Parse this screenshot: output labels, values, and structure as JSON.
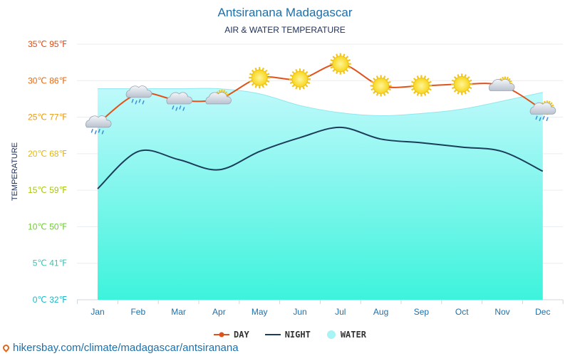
{
  "title": "Antsiranana Madagascar",
  "subtitle": "AIR & WATER TEMPERATURE",
  "footer": "hikersbay.com/climate/madagascar/antsiranana",
  "colors": {
    "day": "#e0521a",
    "night": "#1c3d5a",
    "water_top": "#bff9fb",
    "water_bottom": "#3df3dc",
    "water_line": "#8ee8ee"
  },
  "legend": {
    "day": "DAY",
    "night": "NIGHT",
    "water": "WATER"
  },
  "chart_data": {
    "type": "line",
    "title": "Antsiranana Madagascar",
    "subtitle": "AIR & WATER TEMPERATURE",
    "ylabel": "TEMPERATURE",
    "ylim": [
      0,
      35
    ],
    "grid": true,
    "legend_position": "bottom",
    "categories": [
      "Jan",
      "Feb",
      "Mar",
      "Apr",
      "May",
      "Jun",
      "Jul",
      "Aug",
      "Sep",
      "Oct",
      "Nov",
      "Dec"
    ],
    "y_ticks": [
      {
        "value": 0,
        "label": "0℃ 32℉",
        "color": "#1fb5c4"
      },
      {
        "value": 5,
        "label": "5℃ 41℉",
        "color": "#3cc0b4"
      },
      {
        "value": 10,
        "label": "10℃ 50℉",
        "color": "#72c83a"
      },
      {
        "value": 15,
        "label": "15℃ 59℉",
        "color": "#a8c414"
      },
      {
        "value": 20,
        "label": "20℃ 68℉",
        "color": "#e0b70f"
      },
      {
        "value": 25,
        "label": "25℃ 77℉",
        "color": "#e89a10"
      },
      {
        "value": 30,
        "label": "30℃ 86℉",
        "color": "#e06a12"
      },
      {
        "value": 35,
        "label": "35℃ 95℉",
        "color": "#df4a12"
      }
    ],
    "series": [
      {
        "name": "DAY",
        "values": [
          24.1,
          28.2,
          27.3,
          27.5,
          30.4,
          30.2,
          32.3,
          29.3,
          29.3,
          29.5,
          29.3,
          26.0
        ]
      },
      {
        "name": "NIGHT",
        "values": [
          15.2,
          20.3,
          19.2,
          17.8,
          20.3,
          22.2,
          23.6,
          22.0,
          21.5,
          20.9,
          20.3,
          17.6
        ]
      },
      {
        "name": "WATER",
        "values": [
          28.9,
          28.9,
          28.9,
          28.9,
          28.2,
          26.6,
          25.6,
          25.2,
          25.5,
          26.1,
          27.2,
          28.4
        ]
      }
    ],
    "weather_icons": [
      "rain-cloud-icon",
      "rain-cloud-icon",
      "rain-cloud-icon",
      "sun-cloud-icon",
      "sun-icon",
      "sun-icon",
      "sun-icon",
      "sun-icon",
      "sun-icon",
      "sun-icon",
      "sun-cloud-icon",
      "sun-rain-cloud-icon"
    ]
  }
}
